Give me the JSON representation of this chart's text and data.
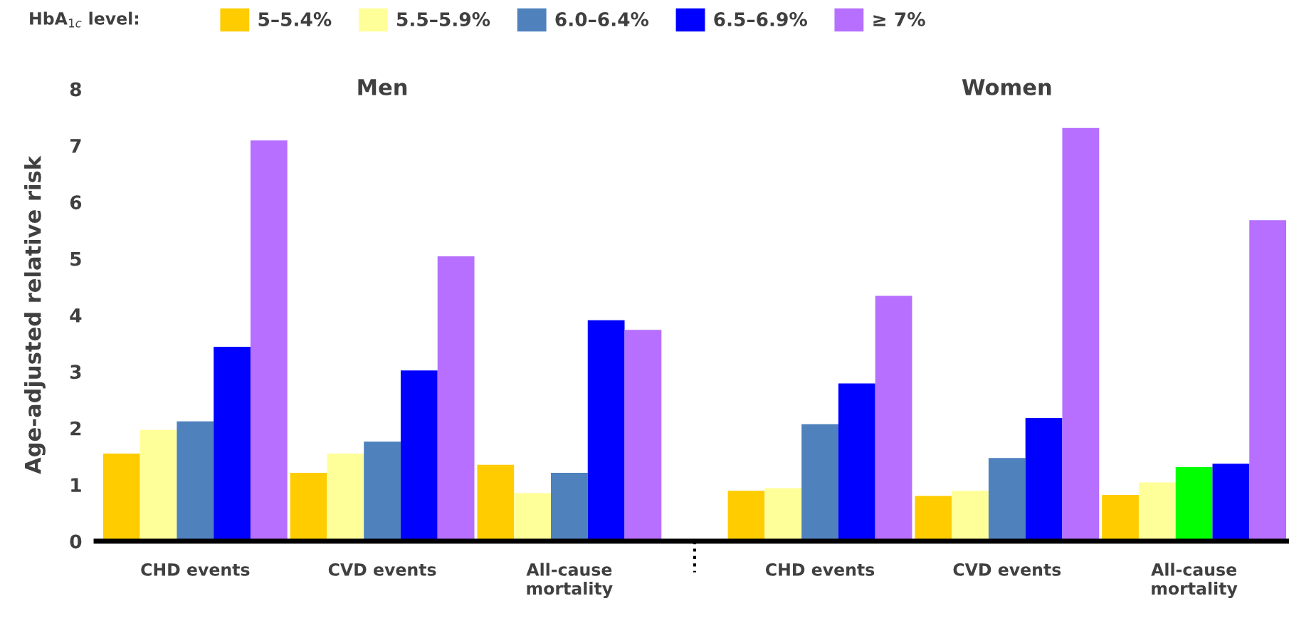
{
  "chart_data": {
    "type": "bar",
    "ylabel": "Age-adjusted relative risk",
    "legend_title": "HbA$_{1c}$ level:",
    "annotations": [
      "Men",
      "Women"
    ],
    "categories": [
      "CHD events",
      "CVD events",
      "All-cause\nmortality",
      "CHD events",
      "CVD events",
      "All-cause\nmortality"
    ],
    "series": [
      {
        "name": "5–5.4%",
        "color": "#ffcc00",
        "values": [
          1.55,
          1.21,
          1.35,
          0.89,
          0.8,
          0.82
        ]
      },
      {
        "name": "5.5–5.9%",
        "color": "#ffff99",
        "values": [
          1.97,
          1.55,
          0.85,
          0.94,
          0.89,
          1.04
        ]
      },
      {
        "name": "6.0–6.4%",
        "color": "#4f81bd",
        "colors": [
          "#4f81bd",
          "#4f81bd",
          "#4f81bd",
          "#4f81bd",
          "#4f81bd",
          "#00ff00"
        ],
        "values": [
          2.12,
          1.76,
          1.21,
          2.07,
          1.47,
          1.31
        ]
      },
      {
        "name": "6.5–6.9%",
        "color": "#0000ff",
        "values": [
          3.44,
          3.02,
          3.91,
          2.79,
          2.18,
          1.37
        ]
      },
      {
        "name": "≥ 7%",
        "color": "#b66fff",
        "values": [
          7.09,
          5.04,
          3.74,
          4.34,
          7.31,
          5.68
        ]
      }
    ],
    "ylim": [
      0,
      8
    ],
    "yticks": [
      0,
      1,
      2,
      3,
      4,
      5,
      6,
      7,
      8
    ],
    "grid": false,
    "legend": "top"
  }
}
